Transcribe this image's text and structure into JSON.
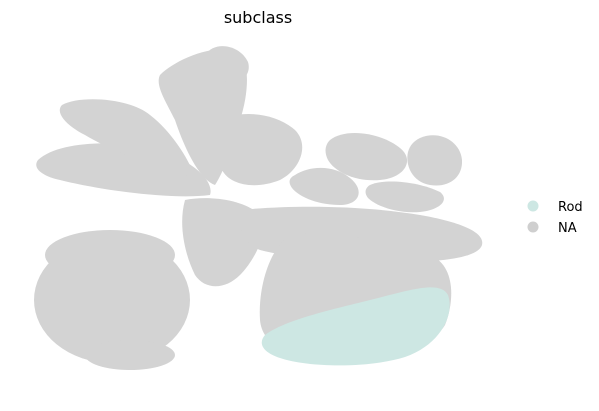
{
  "chart_data": {
    "type": "scatter",
    "title": "subclass",
    "xlabel": "",
    "ylabel": "",
    "grid": false,
    "axes_visible": false,
    "legend_placement": "right",
    "series": [
      {
        "name": "Rod",
        "color": "#cde7e3"
      },
      {
        "name": "NA",
        "color": "#cfcfcf"
      }
    ],
    "clusters": [
      {
        "id": "left-blob",
        "series": "NA"
      },
      {
        "id": "left-leaf",
        "series": "NA"
      },
      {
        "id": "upper-leaf",
        "series": "NA"
      },
      {
        "id": "top-stem",
        "series": "NA"
      },
      {
        "id": "right-lobe-1",
        "series": "NA"
      },
      {
        "id": "right-lobe-2",
        "series": "NA"
      },
      {
        "id": "center-body",
        "series": "NA"
      },
      {
        "id": "lower-right-mass",
        "series": "NA"
      },
      {
        "id": "rod-cluster",
        "series": "Rod"
      }
    ]
  }
}
